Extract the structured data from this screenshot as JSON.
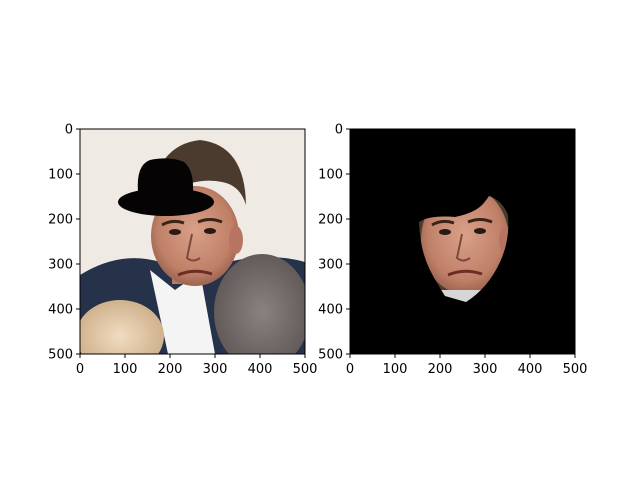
{
  "chart_data": [
    {
      "type": "image",
      "panel": "left",
      "content": "photo of a man's head with a black bowler hat drawn over it",
      "xlim": [
        0,
        500
      ],
      "ylim": [
        500,
        0
      ],
      "xticks": [
        0,
        100,
        200,
        300,
        400,
        500
      ],
      "yticks": [
        0,
        100,
        200,
        300,
        400,
        500
      ],
      "xlabel": "",
      "ylabel": "",
      "title": ""
    },
    {
      "type": "image",
      "panel": "right",
      "content": "segmented face region on black background",
      "xlim": [
        0,
        500
      ],
      "ylim": [
        500,
        0
      ],
      "xticks": [
        0,
        100,
        200,
        300,
        400,
        500
      ],
      "yticks": [
        0,
        100,
        200,
        300,
        400,
        500
      ],
      "xlabel": "",
      "ylabel": "",
      "title": ""
    }
  ],
  "colors": {
    "background": "#ffffff",
    "mask_background": "#000000",
    "hat": "#050303",
    "skin": "#c98e74",
    "hair": "#4b3b2e",
    "suit": "#26324a",
    "wall": "#efeae4"
  }
}
